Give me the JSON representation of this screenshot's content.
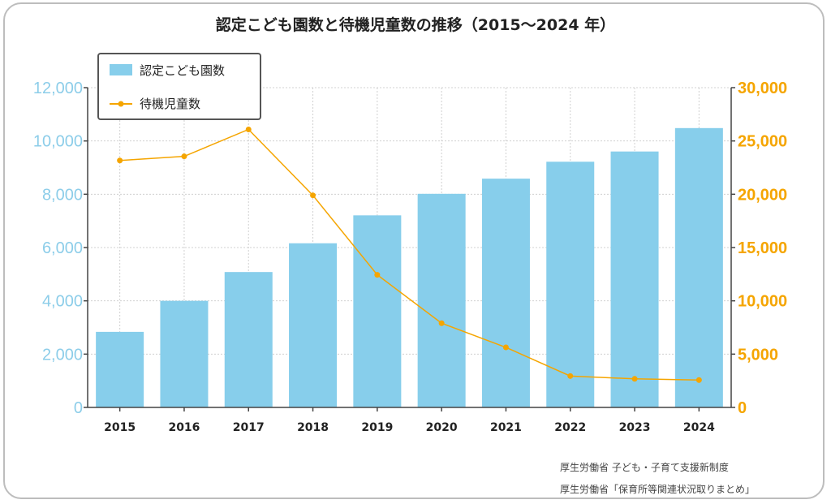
{
  "chart_data": {
    "type": "bar",
    "title": "認定こども園数と待機児童数の推移（2015〜2024 年）",
    "categories": [
      "2015",
      "2016",
      "2017",
      "2018",
      "2019",
      "2020",
      "2021",
      "2022",
      "2023",
      "2024"
    ],
    "series": [
      {
        "name": "認定こども園数",
        "type": "bar",
        "axis": "left",
        "values": [
          2836,
          4001,
          5081,
          6160,
          7208,
          8016,
          8585,
          9220,
          9604,
          10483
        ]
      },
      {
        "name": "待機児童数",
        "type": "line",
        "axis": "right",
        "values": [
          23167,
          23553,
          26081,
          19895,
          12439,
          7900,
          5634,
          2944,
          2680,
          2567
        ]
      }
    ],
    "left_axis": {
      "ylim": [
        0,
        12000
      ],
      "ticks": [
        "0",
        "2,000",
        "4,000",
        "6,000",
        "8,000",
        "10,000",
        "12,000"
      ]
    },
    "right_axis": {
      "ylim": [
        0,
        30000
      ],
      "ticks": [
        "0",
        "5,000",
        "10,000",
        "15,000",
        "20,000",
        "25,000",
        "30,000"
      ]
    },
    "grid": true,
    "legend": "top-left",
    "colors": {
      "bar": "#87ceeb",
      "line": "#f5a500",
      "left_tick": "#8ccde9",
      "right_tick": "#f5a500"
    }
  },
  "sources": [
    "厚生労働省 子ども・子育て支援新制度",
    "厚生労働省「保育所等関連状況取りまとめ」"
  ]
}
